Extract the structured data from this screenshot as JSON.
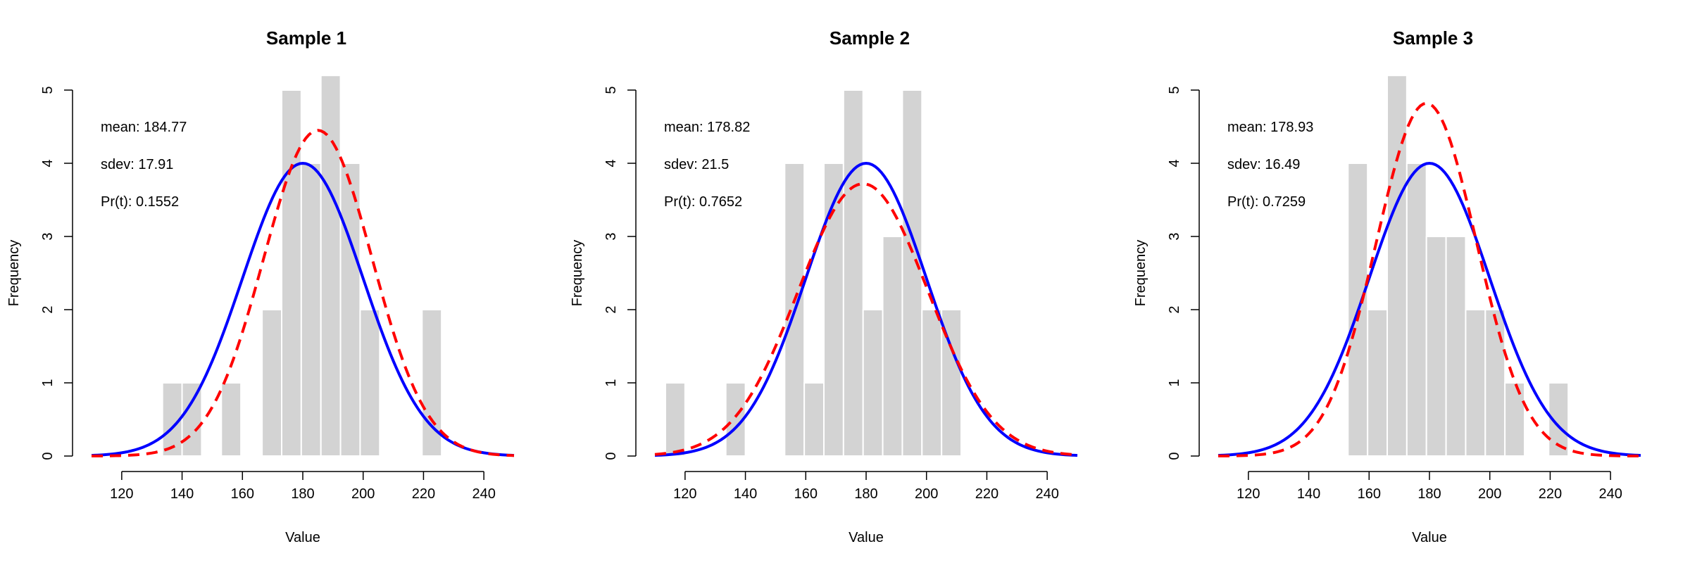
{
  "colors": {
    "bars": "#d3d3d3",
    "bar_edge": "#ffffff",
    "normal_curve": "#0000ff",
    "density_curve": "#ff0000",
    "axis": "#000000"
  },
  "chart_data": [
    {
      "type": "bar",
      "title": "Sample 1",
      "xlabel": "Value",
      "ylabel": "Frequency",
      "xlim": [
        110,
        250
      ],
      "ylim": [
        0,
        5
      ],
      "xticks": [
        120,
        140,
        160,
        180,
        200,
        220,
        240
      ],
      "yticks": [
        0,
        1,
        2,
        3,
        4,
        5
      ],
      "bins": [
        {
          "x0": 133.5,
          "x1": 140,
          "count": 1
        },
        {
          "x0": 140,
          "x1": 146.5,
          "count": 1
        },
        {
          "x0": 153,
          "x1": 159.5,
          "count": 1
        },
        {
          "x0": 166.5,
          "x1": 173,
          "count": 2
        },
        {
          "x0": 173,
          "x1": 179.5,
          "count": 5
        },
        {
          "x0": 179.5,
          "x1": 186,
          "count": 4
        },
        {
          "x0": 186,
          "x1": 192.5,
          "count": 5.2
        },
        {
          "x0": 192.5,
          "x1": 199,
          "count": 4
        },
        {
          "x0": 199,
          "x1": 205.5,
          "count": 2
        },
        {
          "x0": 219.5,
          "x1": 226,
          "count": 2
        }
      ],
      "normal_curve": {
        "mean": 180,
        "peak": 4
      },
      "density_curve": {
        "mean": 185,
        "peak": 4.45
      },
      "stats": {
        "mean": "mean: 184.77",
        "sdev": "sdev: 17.91",
        "pr": "Pr(t): 0.1552"
      }
    },
    {
      "type": "bar",
      "title": "Sample 2",
      "xlabel": "Value",
      "ylabel": "Frequency",
      "xlim": [
        110,
        250
      ],
      "ylim": [
        0,
        5
      ],
      "xticks": [
        120,
        140,
        160,
        180,
        200,
        220,
        240
      ],
      "yticks": [
        0,
        1,
        2,
        3,
        4,
        5
      ],
      "bins": [
        {
          "x0": 113.5,
          "x1": 120,
          "count": 1
        },
        {
          "x0": 133.5,
          "x1": 140,
          "count": 1
        },
        {
          "x0": 153,
          "x1": 159.5,
          "count": 4
        },
        {
          "x0": 159.5,
          "x1": 166,
          "count": 1
        },
        {
          "x0": 166,
          "x1": 172.5,
          "count": 4
        },
        {
          "x0": 172.5,
          "x1": 179,
          "count": 5
        },
        {
          "x0": 179,
          "x1": 185.5,
          "count": 2
        },
        {
          "x0": 185.5,
          "x1": 192,
          "count": 3
        },
        {
          "x0": 192,
          "x1": 198.5,
          "count": 5
        },
        {
          "x0": 198.5,
          "x1": 205,
          "count": 2
        },
        {
          "x0": 205,
          "x1": 211.5,
          "count": 2
        }
      ],
      "normal_curve": {
        "mean": 180,
        "peak": 4
      },
      "density_curve": {
        "mean": 179,
        "peak": 3.72
      },
      "stats": {
        "mean": "mean: 178.82",
        "sdev": "sdev: 21.5",
        "pr": "Pr(t): 0.7652"
      }
    },
    {
      "type": "bar",
      "title": "Sample 3",
      "xlabel": "Value",
      "ylabel": "Frequency",
      "xlim": [
        110,
        250
      ],
      "ylim": [
        0,
        5
      ],
      "xticks": [
        120,
        140,
        160,
        180,
        200,
        220,
        240
      ],
      "yticks": [
        0,
        1,
        2,
        3,
        4,
        5
      ],
      "bins": [
        {
          "x0": 153,
          "x1": 159.5,
          "count": 4
        },
        {
          "x0": 159.5,
          "x1": 166,
          "count": 2
        },
        {
          "x0": 166,
          "x1": 172.5,
          "count": 5.2
        },
        {
          "x0": 172.5,
          "x1": 179,
          "count": 4
        },
        {
          "x0": 179,
          "x1": 185.5,
          "count": 3
        },
        {
          "x0": 185.5,
          "x1": 192,
          "count": 3
        },
        {
          "x0": 192,
          "x1": 198.5,
          "count": 2
        },
        {
          "x0": 198.5,
          "x1": 205,
          "count": 2
        },
        {
          "x0": 205,
          "x1": 211.5,
          "count": 1
        },
        {
          "x0": 219.5,
          "x1": 226,
          "count": 1
        }
      ],
      "normal_curve": {
        "mean": 180,
        "peak": 4
      },
      "density_curve": {
        "mean": 179,
        "peak": 4.82
      },
      "stats": {
        "mean": "mean: 178.93",
        "sdev": "sdev: 16.49",
        "pr": "Pr(t): 0.7259"
      }
    }
  ]
}
